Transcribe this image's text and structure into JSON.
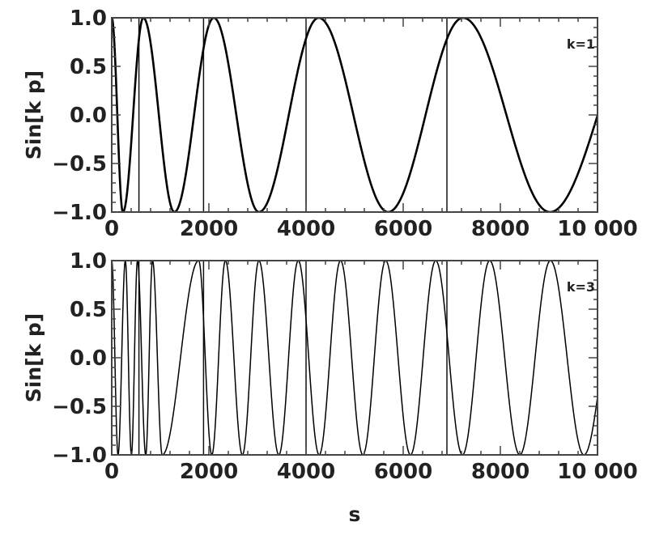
{
  "chart_data": [
    {
      "type": "line",
      "title": "",
      "xlabel": "",
      "ylabel": "Sin[k p]",
      "annotation": "k=1",
      "k": 1,
      "xlim": [
        0,
        10000
      ],
      "ylim": [
        -1.0,
        1.0
      ],
      "xticks": [
        0,
        2000,
        4000,
        6000,
        8000,
        10000
      ],
      "xtick_labels": [
        "0",
        "2000",
        "4000",
        "6000",
        "8000",
        "10 000"
      ],
      "yticks": [
        1.0,
        0.5,
        0.0,
        -0.5,
        -1.0
      ],
      "ytick_labels": [
        "1.0",
        "0.5",
        "0.0",
        "−0.5",
        "−1.0"
      ],
      "vertical_lines": [
        560,
        1890,
        4000,
        6900
      ],
      "maxima_x": [
        0,
        650,
        2100,
        4260,
        7230
      ],
      "minima_x": [
        230,
        1290,
        3030,
        5690,
        9020
      ],
      "end_point": {
        "x": 10000,
        "y": 0.0
      },
      "grid": false,
      "line_color": "#000000"
    },
    {
      "type": "line",
      "title": "",
      "xlabel": "s",
      "ylabel": "Sin[k p]",
      "annotation": "k=3",
      "k": 3,
      "xlim": [
        0,
        10000
      ],
      "ylim": [
        -1.0,
        1.0
      ],
      "xticks": [
        0,
        2000,
        4000,
        6000,
        8000,
        10000
      ],
      "xtick_labels": [
        "0",
        "2000",
        "4000",
        "6000",
        "8000",
        "10 000"
      ],
      "yticks": [
        1.0,
        0.5,
        0.0,
        -0.5,
        -1.0
      ],
      "ytick_labels": [
        "1.0",
        "0.5",
        "0.0",
        "−0.5",
        "−1.0"
      ],
      "vertical_lines": [
        560,
        1890,
        4000,
        6900
      ],
      "maxima_x": [
        0,
        280,
        530,
        840,
        1790,
        2340,
        3030,
        3840,
        4710,
        5640,
        6670,
        7780,
        9030
      ],
      "minima_x": [
        130,
        405,
        700,
        1040,
        2060,
        2690,
        3440,
        4270,
        5170,
        6150,
        7220,
        8400,
        9720
      ],
      "end_point": {
        "x": 10000,
        "y": 0.0
      },
      "grid": false,
      "line_color": "#000000"
    }
  ]
}
